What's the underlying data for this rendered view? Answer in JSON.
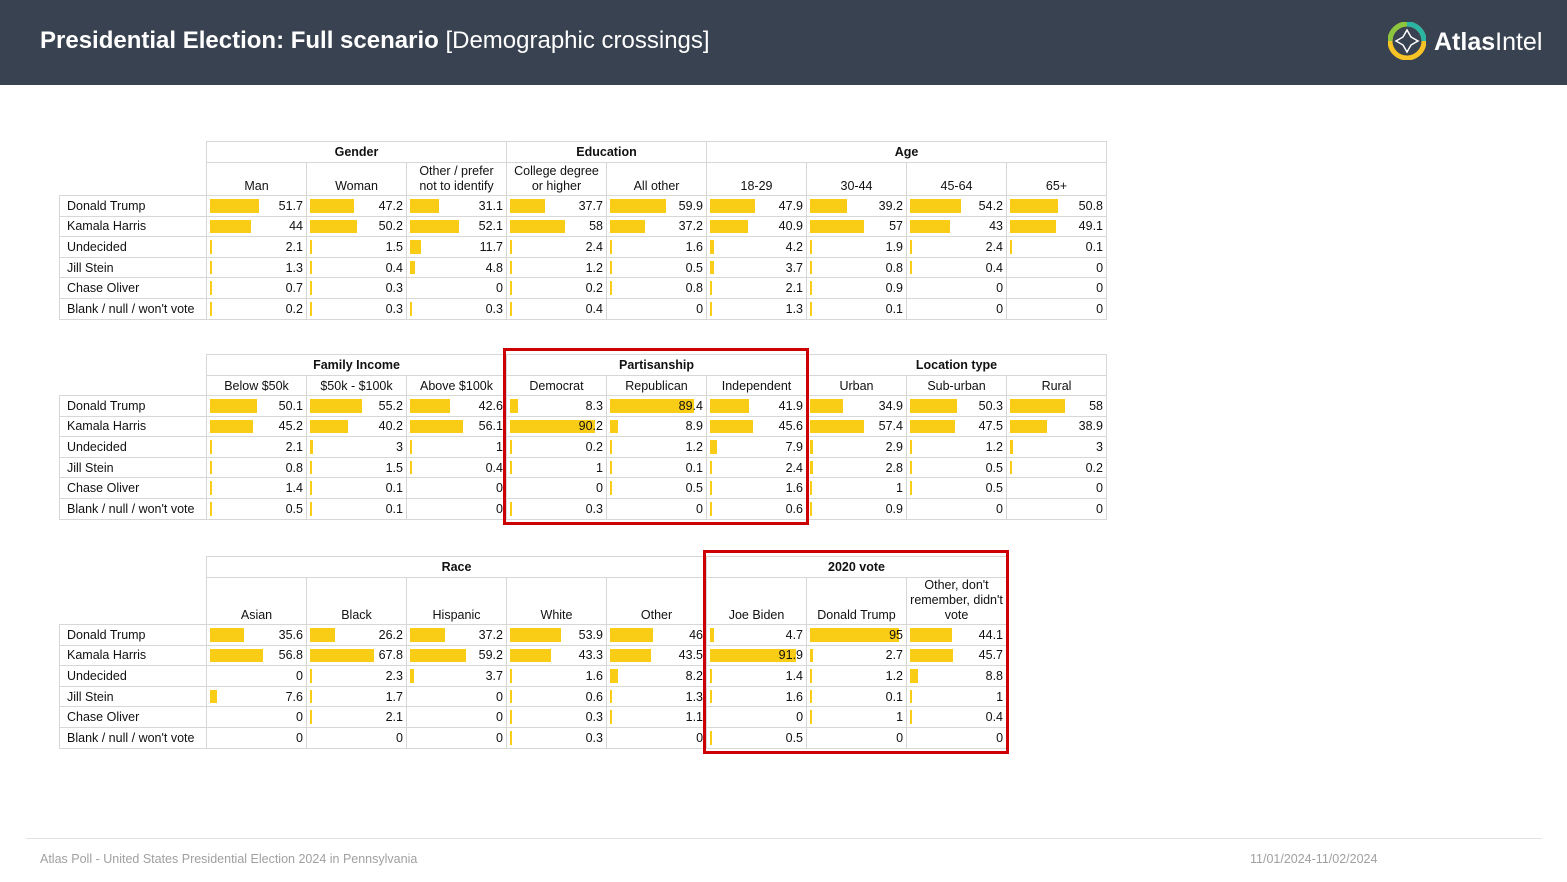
{
  "header": {
    "title_bold": "Presidential Election: Full scenario",
    "title_light": "[Demographic crossings]",
    "logo_bold": "Atlas",
    "logo_light": "Intel"
  },
  "footer": {
    "left": "Atlas Poll - United States Presidential Election 2024 in Pennsylvania",
    "right": "11/01/2024-11/02/2024"
  },
  "colors": {
    "bar": "#f9cc16",
    "highlight": "#cc0000",
    "header_bg": "#394250"
  },
  "chart_data": {
    "type": "table",
    "rows": [
      "Donald Trump",
      "Kamala Harris",
      "Undecided",
      "Jill Stein",
      "Chase Oliver",
      "Blank / null / won't vote"
    ],
    "value_scale": [
      0,
      100
    ],
    "tables": [
      {
        "groups": [
          {
            "name": "Gender",
            "columns": [
              {
                "label": "Man",
                "values": [
                  51.7,
                  44,
                  2.1,
                  1.3,
                  0.7,
                  0.2
                ]
              },
              {
                "label": "Woman",
                "values": [
                  47.2,
                  50.2,
                  1.5,
                  0.4,
                  0.3,
                  0.3
                ]
              },
              {
                "label": "Other / prefer not to identify",
                "values": [
                  31.1,
                  52.1,
                  11.7,
                  4.8,
                  0,
                  0.3
                ]
              }
            ]
          },
          {
            "name": "Education",
            "columns": [
              {
                "label": "College degree or higher",
                "values": [
                  37.7,
                  58,
                  2.4,
                  1.2,
                  0.2,
                  0.4
                ]
              },
              {
                "label": "All other",
                "values": [
                  59.9,
                  37.2,
                  1.6,
                  0.5,
                  0.8,
                  0
                ]
              }
            ]
          },
          {
            "name": "Age",
            "columns": [
              {
                "label": "18-29",
                "values": [
                  47.9,
                  40.9,
                  4.2,
                  3.7,
                  2.1,
                  1.3
                ]
              },
              {
                "label": "30-44",
                "values": [
                  39.2,
                  57,
                  1.9,
                  0.8,
                  0.9,
                  0.1
                ]
              },
              {
                "label": "45-64",
                "values": [
                  54.2,
                  43,
                  2.4,
                  0.4,
                  0,
                  0
                ]
              },
              {
                "label": "65+",
                "values": [
                  50.8,
                  49.1,
                  0.1,
                  0,
                  0,
                  0
                ]
              }
            ]
          }
        ]
      },
      {
        "groups": [
          {
            "name": "Family Income",
            "columns": [
              {
                "label": "Below $50k",
                "values": [
                  50.1,
                  45.2,
                  2.1,
                  0.8,
                  1.4,
                  0.5
                ]
              },
              {
                "label": "$50k - $100k",
                "values": [
                  55.2,
                  40.2,
                  3,
                  1.5,
                  0.1,
                  0.1
                ]
              },
              {
                "label": "Above $100k",
                "values": [
                  42.6,
                  56.1,
                  1,
                  0.4,
                  0,
                  0
                ]
              }
            ]
          },
          {
            "name": "Partisanship",
            "highlighted": true,
            "columns": [
              {
                "label": "Democrat",
                "values": [
                  8.3,
                  90.2,
                  0.2,
                  1,
                  0,
                  0.3
                ]
              },
              {
                "label": "Republican",
                "values": [
                  89.4,
                  8.9,
                  1.2,
                  0.1,
                  0.5,
                  0
                ]
              },
              {
                "label": "Independent",
                "values": [
                  41.9,
                  45.6,
                  7.9,
                  2.4,
                  1.6,
                  0.6
                ]
              }
            ]
          },
          {
            "name": "Location type",
            "columns": [
              {
                "label": "Urban",
                "values": [
                  34.9,
                  57.4,
                  2.9,
                  2.8,
                  1,
                  0.9
                ]
              },
              {
                "label": "Sub-urban",
                "values": [
                  50.3,
                  47.5,
                  1.2,
                  0.5,
                  0.5,
                  0
                ]
              },
              {
                "label": "Rural",
                "values": [
                  58,
                  38.9,
                  3,
                  0.2,
                  0,
                  0
                ]
              }
            ]
          }
        ]
      },
      {
        "groups": [
          {
            "name": "Race",
            "columns": [
              {
                "label": "Asian",
                "values": [
                  35.6,
                  56.8,
                  0,
                  7.6,
                  0,
                  0
                ]
              },
              {
                "label": "Black",
                "values": [
                  26.2,
                  67.8,
                  2.3,
                  1.7,
                  2.1,
                  0
                ]
              },
              {
                "label": "Hispanic",
                "values": [
                  37.2,
                  59.2,
                  3.7,
                  0,
                  0,
                  0
                ]
              },
              {
                "label": "White",
                "values": [
                  53.9,
                  43.3,
                  1.6,
                  0.6,
                  0.3,
                  0.3
                ]
              },
              {
                "label": "Other",
                "values": [
                  46,
                  43.5,
                  8.2,
                  1.3,
                  1.1,
                  0
                ]
              }
            ]
          },
          {
            "name": "2020 vote",
            "highlighted": true,
            "columns": [
              {
                "label": "Joe Biden",
                "values": [
                  4.7,
                  91.9,
                  1.4,
                  1.6,
                  0,
                  0.5
                ]
              },
              {
                "label": "Donald Trump",
                "values": [
                  95,
                  2.7,
                  1.2,
                  0.1,
                  1,
                  0
                ]
              },
              {
                "label": "Other, don't remember, didn't vote",
                "values": [
                  44.1,
                  45.7,
                  8.8,
                  1,
                  0.4,
                  0
                ]
              }
            ]
          }
        ]
      }
    ]
  }
}
